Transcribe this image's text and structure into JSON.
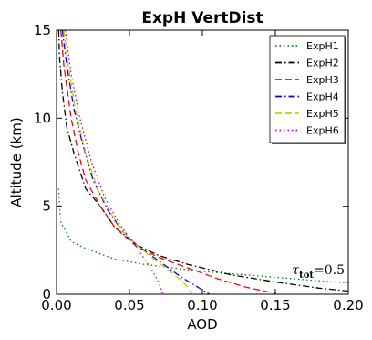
{
  "chart_data": {
    "type": "line",
    "title": "ExpH VertDist",
    "xlabel": "AOD",
    "ylabel": "Altitude (km)",
    "xlim": [
      0.0,
      0.2
    ],
    "ylim": [
      0,
      15
    ],
    "xticks": [
      0.0,
      0.05,
      0.1,
      0.15,
      0.2
    ],
    "xtick_labels": [
      "0.00",
      "0.05",
      "0.10",
      "0.15",
      "0.20"
    ],
    "yticks": [
      0,
      5,
      10,
      15
    ],
    "ytick_labels": [
      "0",
      "5",
      "10",
      "15"
    ],
    "grid": false,
    "legend_position": "top-right",
    "annotation": {
      "symbol": "τ",
      "subscript": "tot",
      "text": "=0.5"
    },
    "series": [
      {
        "name": "ExpH1",
        "color": "#008000",
        "dash": "1.5,3",
        "x": [
          0.0015,
          0.002,
          0.003,
          0.005,
          0.01,
          0.02,
          0.04,
          0.06,
          0.08,
          0.1,
          0.13,
          0.16,
          0.19,
          0.21
        ],
        "y": [
          6.0,
          5.0,
          4.0,
          3.8,
          3.0,
          2.6,
          2.0,
          1.7,
          1.5,
          1.3,
          1.1,
          0.9,
          0.7,
          0.6
        ]
      },
      {
        "name": "ExpH2",
        "color": "#000000",
        "dash": "7,3,1.5,3",
        "x": [
          0.0015,
          0.002,
          0.004,
          0.007,
          0.012,
          0.02,
          0.03,
          0.04,
          0.055,
          0.07,
          0.09,
          0.12,
          0.15,
          0.18,
          0.21
        ],
        "y": [
          15.0,
          13.5,
          11.5,
          9.5,
          8.0,
          6.0,
          5.0,
          3.8,
          2.8,
          2.2,
          1.7,
          1.1,
          0.7,
          0.35,
          0.1
        ]
      },
      {
        "name": "ExpH3",
        "color": "#ff0000",
        "dash": "7,4",
        "x": [
          0.003,
          0.005,
          0.01,
          0.015,
          0.02,
          0.03,
          0.04,
          0.055,
          0.07,
          0.09,
          0.11,
          0.13,
          0.15
        ],
        "y": [
          15.0,
          13.0,
          10.0,
          8.0,
          6.5,
          5.0,
          3.8,
          2.7,
          2.1,
          1.5,
          0.9,
          0.4,
          0.05
        ]
      },
      {
        "name": "ExpH4",
        "color": "#0000ff",
        "dash": "7,3,1.5,3",
        "x": [
          0.004,
          0.007,
          0.012,
          0.018,
          0.025,
          0.035,
          0.045,
          0.055,
          0.065,
          0.075,
          0.085,
          0.095,
          0.105
        ],
        "y": [
          15.0,
          13.0,
          10.5,
          8.5,
          6.5,
          4.8,
          3.6,
          2.8,
          2.2,
          1.6,
          1.0,
          0.5,
          0.0
        ]
      },
      {
        "name": "ExpH5",
        "color": "#cccc00",
        "dash": "7,4",
        "x": [
          0.005,
          0.008,
          0.013,
          0.02,
          0.028,
          0.038,
          0.048,
          0.058,
          0.068,
          0.078,
          0.088,
          0.093
        ],
        "y": [
          15.0,
          13.0,
          10.5,
          8.0,
          6.0,
          4.5,
          3.3,
          2.6,
          1.9,
          1.3,
          0.6,
          0.0
        ]
      },
      {
        "name": "ExpH6",
        "color": "#bf00bf",
        "dash": "1.5,3",
        "x": [
          0.006,
          0.01,
          0.016,
          0.024,
          0.033,
          0.043,
          0.052,
          0.058,
          0.062,
          0.066,
          0.07,
          0.073
        ],
        "y": [
          15.0,
          12.5,
          10.0,
          7.5,
          5.5,
          4.0,
          3.0,
          2.3,
          1.8,
          1.3,
          0.7,
          0.0
        ]
      }
    ]
  }
}
